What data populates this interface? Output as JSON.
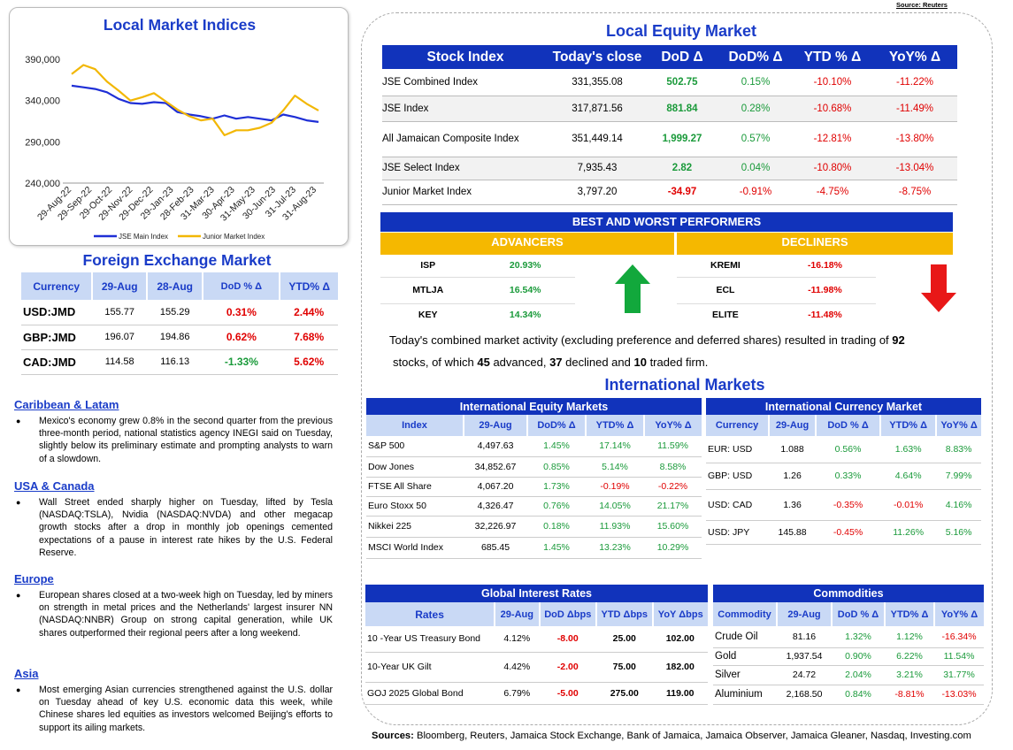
{
  "source_top": "Source: Reuters",
  "chart_title": "Local Market Indices",
  "chart_data": {
    "type": "line",
    "x_ticks": [
      "29-Aug-22",
      "29-Sep-22",
      "29-Oct-22",
      "29-Nov-22",
      "29-Dec-22",
      "29-Jan-23",
      "28-Feb-23",
      "31-Mar-23",
      "30-Apr-23",
      "31-May-23",
      "30-Jun-23",
      "31-Jul-23",
      "31-Aug-23"
    ],
    "y_ticks": [
      "390,000",
      "340,000",
      "290,000",
      "240,000"
    ],
    "y_values": [
      390000,
      340000,
      290000,
      240000
    ],
    "ylim": [
      240000,
      390000
    ],
    "series": [
      {
        "name": "JSE Main Index",
        "color": "#1f2fd6",
        "values": [
          358000,
          356000,
          354000,
          350000,
          342000,
          337000,
          336000,
          338000,
          337000,
          326000,
          323000,
          321000,
          318000,
          322000,
          318000,
          320000,
          318000,
          316000,
          323000,
          320000,
          316000,
          314000
        ]
      },
      {
        "name": "Junior Market Index",
        "color": "#f2b705",
        "values": [
          372000,
          383000,
          378000,
          363000,
          352000,
          340000,
          344000,
          349000,
          339000,
          329000,
          321000,
          316000,
          318000,
          298000,
          304000,
          304000,
          307000,
          313000,
          328000,
          346000,
          336000,
          328000
        ]
      }
    ],
    "legend": "bottom"
  },
  "fx": {
    "title": "Foreign Exchange Market",
    "headers": [
      "Currency",
      "29-Aug",
      "28-Aug",
      "DoD % Δ",
      "YTD% Δ"
    ],
    "rows": [
      {
        "cur": "USD:JMD",
        "a": "155.77",
        "b": "155.29",
        "dod": "0.31%",
        "ytd": "2.44%",
        "dod_c": "red",
        "ytd_c": "red"
      },
      {
        "cur": "GBP:JMD",
        "a": "196.07",
        "b": "194.86",
        "dod": "0.62%",
        "ytd": "7.68%",
        "dod_c": "red",
        "ytd_c": "red"
      },
      {
        "cur": "CAD:JMD",
        "a": "114.58",
        "b": "116.13",
        "dod": "-1.33%",
        "ytd": "5.62%",
        "dod_c": "green",
        "ytd_c": "red"
      }
    ]
  },
  "news": [
    {
      "head": "Caribbean & Latam",
      "text": "Mexico's economy grew 0.8% in the second quarter from the previous three-month period, national statistics agency INEGI said on Tuesday, slightly below its preliminary estimate and prompting analysts to warn of a slowdown."
    },
    {
      "head": "USA & Canada",
      "text": "Wall Street ended sharply higher on Tuesday, lifted by Tesla (NASDAQ:TSLA), Nvidia (NASDAQ:NVDA) and other megacap growth stocks after a drop in monthly job openings cemented expectations of a pause in interest rate hikes by the U.S. Federal Reserve."
    },
    {
      "head": "Europe",
      "text": "European shares closed at a two-week high on Tuesday, led by miners on strength in metal prices and the Netherlands' largest insurer NN (NASDAQ:NNBR) Group on strong capital generation, while UK shares outperformed their regional peers after a long weekend."
    },
    {
      "head": "Asia",
      "text": "Most emerging Asian currencies strengthened against the U.S. dollar on Tuesday ahead of key U.S. economic data this week, while Chinese shares led equities as investors welcomed Beijing's efforts to support its ailing markets."
    }
  ],
  "equity": {
    "title": "Local Equity Market",
    "headers": [
      "Stock Index",
      "Today's close",
      "DoD  Δ",
      "DoD% Δ",
      "YTD % Δ",
      "YoY% Δ"
    ],
    "rows": [
      {
        "name": "JSE Combined Index",
        "close": "331,355.08",
        "dod": "502.75",
        "dodp": "0.15%",
        "ytd": "-10.10%",
        "yoy": "-11.22%",
        "c": "green"
      },
      {
        "name": "JSE Index",
        "close": "317,871.56",
        "dod": "881.84",
        "dodp": "0.28%",
        "ytd": "-10.68%",
        "yoy": "-11.49%",
        "c": "green"
      },
      {
        "name": "All Jamaican Composite Index",
        "close": "351,449.14",
        "dod": "1,999.27",
        "dodp": "0.57%",
        "ytd": "-12.81%",
        "yoy": "-13.80%",
        "c": "green"
      },
      {
        "name": "JSE Select Index",
        "close": "7,935.43",
        "dod": "2.82",
        "dodp": "0.04%",
        "ytd": "-10.80%",
        "yoy": "-13.04%",
        "c": "green"
      },
      {
        "name": "Junior Market Index",
        "close": "3,797.20",
        "dod": "-34.97",
        "dodp": "-0.91%",
        "ytd": "-4.75%",
        "yoy": "-8.75%",
        "c": "red"
      }
    ]
  },
  "performers": {
    "title": "BEST AND WORST PERFORMERS",
    "advancers_label": "ADVANCERS",
    "decliners_label": "DECLINERS",
    "advancers": [
      {
        "t": "ISP",
        "v": "20.93%"
      },
      {
        "t": "MTLJA",
        "v": "16.54%"
      },
      {
        "t": "KEY",
        "v": "14.34%"
      }
    ],
    "decliners": [
      {
        "t": "KREMI",
        "v": "-16.18%"
      },
      {
        "t": "ECL",
        "v": "-11.98%"
      },
      {
        "t": "ELITE",
        "v": "-11.48%"
      }
    ]
  },
  "activity": {
    "p1": "Today's combined market activity (excluding preference and deferred shares) resulted in trading of ",
    "n1": "92",
    "p2": " stocks, of which ",
    "n2": "45",
    "p3": " advanced, ",
    "n3": "37",
    "p4": " declined and ",
    "n4": "10",
    "p5": " traded firm."
  },
  "intl_title": "International Markets",
  "intl_equity": {
    "title": "International Equity Markets",
    "headers": [
      "Index",
      "29-Aug",
      "DoD% Δ",
      "YTD% Δ",
      "YoY% Δ"
    ],
    "rows": [
      {
        "name": "S&P 500",
        "v": "4,497.63",
        "dod": "1.45%",
        "ytd": "17.14%",
        "yoy": "11.59%",
        "cd": "green",
        "cy": "green",
        "cyy": "green"
      },
      {
        "name": "Dow Jones",
        "v": "34,852.67",
        "dod": "0.85%",
        "ytd": "5.14%",
        "yoy": "8.58%",
        "cd": "green",
        "cy": "green",
        "cyy": "green"
      },
      {
        "name": "FTSE All Share",
        "v": "4,067.20",
        "dod": "1.73%",
        "ytd": "-0.19%",
        "yoy": "-0.22%",
        "cd": "green",
        "cy": "red",
        "cyy": "red"
      },
      {
        "name": "Euro Stoxx 50",
        "v": "4,326.47",
        "dod": "0.76%",
        "ytd": "14.05%",
        "yoy": "21.17%",
        "cd": "green",
        "cy": "green",
        "cyy": "green"
      },
      {
        "name": "Nikkei 225",
        "v": "32,226.97",
        "dod": "0.18%",
        "ytd": "11.93%",
        "yoy": "15.60%",
        "cd": "green",
        "cy": "green",
        "cyy": "green"
      },
      {
        "name": "MSCI World Index",
        "v": "685.45",
        "dod": "1.45%",
        "ytd": "13.23%",
        "yoy": "10.29%",
        "cd": "green",
        "cy": "green",
        "cyy": "green"
      }
    ]
  },
  "intl_currency": {
    "title": "International Currency Market",
    "headers": [
      "Currency",
      "29-Aug",
      "DoD % Δ",
      "YTD% Δ",
      "YoY% Δ"
    ],
    "rows": [
      {
        "name": "EUR: USD",
        "v": "1.088",
        "dod": "0.56%",
        "ytd": "1.63%",
        "yoy": "8.83%",
        "cd": "green",
        "cy": "green",
        "cyy": "green"
      },
      {
        "name": "GBP: USD",
        "v": "1.26",
        "dod": "0.33%",
        "ytd": "4.64%",
        "yoy": "7.99%",
        "cd": "green",
        "cy": "green",
        "cyy": "green"
      },
      {
        "name": "USD: CAD",
        "v": "1.36",
        "dod": "-0.35%",
        "ytd": "-0.01%",
        "yoy": "4.16%",
        "cd": "red",
        "cy": "red",
        "cyy": "green"
      },
      {
        "name": "USD: JPY",
        "v": "145.88",
        "dod": "-0.45%",
        "ytd": "11.26%",
        "yoy": "5.16%",
        "cd": "red",
        "cy": "green",
        "cyy": "green"
      }
    ]
  },
  "rates": {
    "title": "Global Interest Rates",
    "headers": [
      "Rates",
      "29-Aug",
      "DoD Δbps",
      "YTD Δbps",
      "YoY Δbps"
    ],
    "rows": [
      {
        "name": "10 -Year US Treasury Bond",
        "v": "4.12%",
        "dod": "-8.00",
        "ytd": "25.00",
        "yoy": "102.00"
      },
      {
        "name": "10-Year UK Gilt",
        "v": "4.42%",
        "dod": "-2.00",
        "ytd": "75.00",
        "yoy": "182.00"
      },
      {
        "name": "GOJ 2025 Global Bond",
        "v": "6.79%",
        "dod": "-5.00",
        "ytd": "275.00",
        "yoy": "119.00"
      }
    ]
  },
  "commodities": {
    "title": "Commodities",
    "headers": [
      "Commodity",
      "29-Aug",
      "DoD % Δ",
      "YTD% Δ",
      "YoY% Δ"
    ],
    "rows": [
      {
        "name": "Crude Oil",
        "v": "81.16",
        "dod": "1.32%",
        "ytd": "1.12%",
        "yoy": "-16.34%",
        "cyy": "red"
      },
      {
        "name": "Gold",
        "v": "1,937.54",
        "dod": "0.90%",
        "ytd": "6.22%",
        "yoy": "11.54%",
        "cyy": "green",
        "cy": "green"
      },
      {
        "name": "Silver",
        "v": "24.72",
        "dod": "2.04%",
        "ytd": "3.21%",
        "yoy": "31.77%",
        "cyy": "green",
        "cy": "green"
      },
      {
        "name": "Aluminium",
        "v": "2,168.50",
        "dod": "0.84%",
        "ytd": "-8.81%",
        "yoy": "-13.03%",
        "cyy": "red",
        "cy": "red"
      }
    ]
  },
  "sources_label": "Sources:",
  "sources_text": " Bloomberg, Reuters, Jamaica Stock Exchange, Bank of Jamaica, Jamaica Observer, Jamaica Gleaner, Nasdaq, Investing.com"
}
